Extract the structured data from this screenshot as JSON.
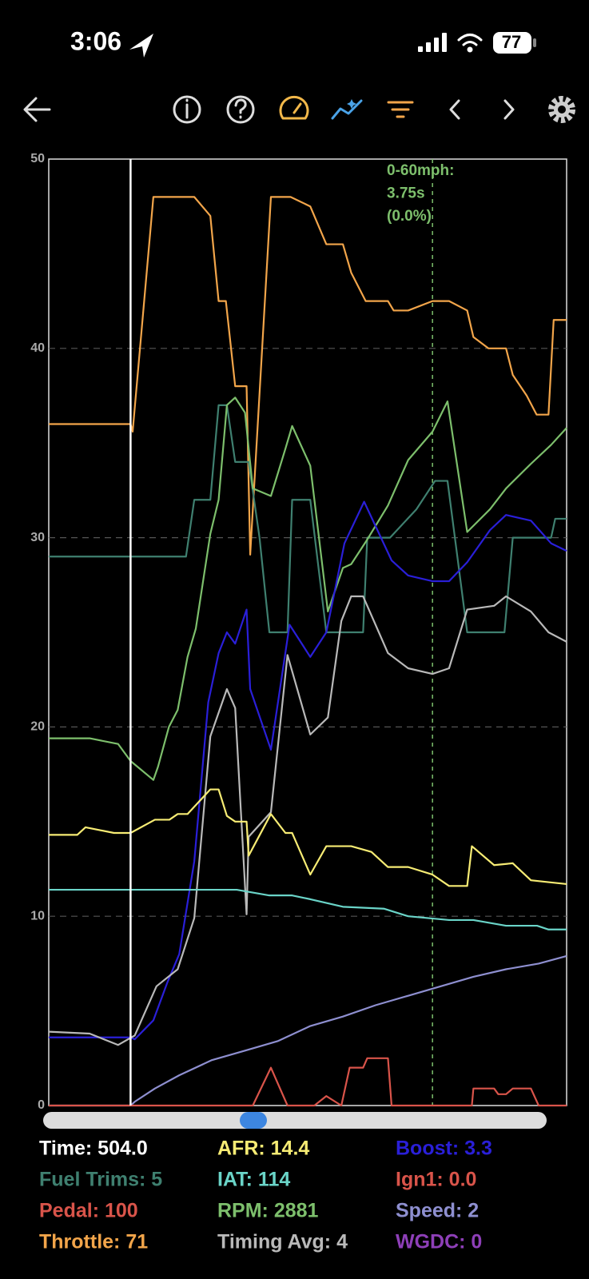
{
  "status_bar": {
    "time": "3:06",
    "battery": "77"
  },
  "chart_data": {
    "type": "line",
    "xlim": [
      0,
      100
    ],
    "ylim": [
      0,
      50
    ],
    "yticks": [
      0,
      10,
      20,
      30,
      40,
      50
    ],
    "grid": true,
    "cursor_x": 15.8,
    "marker_x": 74.1,
    "marker_color": "#7dbf6c",
    "annotation": [
      "0-60mph:",
      "3.75s",
      "(0.0%)"
    ],
    "series": [
      {
        "color": "#f2a54a",
        "x": [
          0,
          15.8,
          16.2,
          20.2,
          28.1,
          31.2,
          32.8,
          34.2,
          36,
          38.2,
          38.9,
          42.9,
          46.7,
          50.5,
          53.6,
          56.8,
          58.4,
          61.2,
          65.5,
          66.6,
          69.4,
          74.1,
          77.3,
          80.8,
          82,
          84.9,
          88.3,
          89.6,
          92.3,
          94.2,
          96.5,
          97.5,
          100
        ],
        "values": [
          36,
          36,
          35.6,
          48,
          48,
          47,
          42.5,
          42.5,
          38,
          38,
          29.1,
          48,
          48,
          47.5,
          45.5,
          45.5,
          44,
          42.5,
          42.5,
          42,
          42,
          42.5,
          42.5,
          42,
          40.6,
          40,
          40,
          38.6,
          37.5,
          36.5,
          36.5,
          41.5,
          41.5
        ]
      },
      {
        "color": "#3f8070",
        "x": [
          0,
          26.5,
          28.1,
          31.2,
          32.8,
          34.4,
          36,
          38.6,
          40.7,
          42.6,
          46.1,
          47,
          50.5,
          53.6,
          60.7,
          61.5,
          65.9,
          71,
          74.6,
          77,
          80.8,
          88,
          89.6,
          97,
          97.8,
          100
        ],
        "values": [
          29,
          29,
          32,
          32,
          37,
          37,
          34,
          34,
          30,
          25,
          25,
          32,
          32,
          25,
          25,
          30,
          30,
          31.5,
          33,
          33,
          25,
          25,
          30,
          30,
          31,
          31
        ]
      },
      {
        "color": "#7dbf6c",
        "x": [
          0,
          7.9,
          13.4,
          15.8,
          20.2,
          21.1,
          23.2,
          24.9,
          26.8,
          28.4,
          31.2,
          32.8,
          34.4,
          36,
          37.9,
          39.4,
          42.9,
          45.7,
          47,
          50.5,
          53.9,
          56.8,
          58.4,
          61.5,
          65.5,
          69.4,
          74.1,
          77,
          80.8,
          85.2,
          88.3,
          93.1,
          97,
          100
        ],
        "values": [
          19.4,
          19.4,
          19.1,
          18.2,
          17.2,
          17.9,
          20,
          20.9,
          23.7,
          25.2,
          30.2,
          32,
          37,
          37.4,
          36.6,
          32.6,
          32.2,
          34.7,
          35.9,
          33.8,
          26.1,
          28.4,
          28.6,
          29.9,
          31.7,
          34.1,
          35.6,
          37.2,
          30.3,
          31.5,
          32.6,
          33.9,
          34.9,
          35.8
        ]
      },
      {
        "color": "#2a1fd8",
        "x": [
          0,
          15.8,
          16.6,
          20.2,
          22.9,
          25.2,
          28.1,
          30.8,
          32.8,
          34.4,
          36,
          38.2,
          38.9,
          42.9,
          46.5,
          50.5,
          53.6,
          57.1,
          60.9,
          66.2,
          69.4,
          74.1,
          77.3,
          80.8,
          85.2,
          88.3,
          93.1,
          97,
          100
        ],
        "values": [
          3.6,
          3.6,
          3.5,
          4.5,
          6.5,
          8,
          12.9,
          21.3,
          23.9,
          25,
          24.4,
          26.2,
          22,
          18.8,
          25.4,
          23.7,
          25,
          29.7,
          31.9,
          28.8,
          28,
          27.7,
          27.7,
          28.7,
          30.4,
          31.2,
          30.9,
          29.7,
          29.3
        ]
      },
      {
        "color": "#b9b9b9",
        "x": [
          0,
          7.9,
          13.4,
          16.6,
          20.8,
          24.9,
          28.1,
          31.2,
          34.4,
          36,
          38.2,
          38.6,
          42.9,
          46.1,
          50.5,
          53.9,
          56.5,
          58.4,
          60.7,
          65.5,
          69.4,
          74.1,
          77.3,
          80.8,
          86,
          88.3,
          93.1,
          96.5,
          100
        ],
        "values": [
          3.9,
          3.8,
          3.2,
          3.7,
          6.3,
          7.2,
          9.9,
          19.5,
          22,
          21,
          10.1,
          14.2,
          15.5,
          23.8,
          19.6,
          20.5,
          25.6,
          26.9,
          26.9,
          23.9,
          23.1,
          22.8,
          23.1,
          26.2,
          26.4,
          26.9,
          26.1,
          25,
          24.5
        ]
      },
      {
        "color": "#f7ec74",
        "x": [
          0,
          5.5,
          7.1,
          12.6,
          15.8,
          20.5,
          23.3,
          24.9,
          26.8,
          31.2,
          32.8,
          34.4,
          36,
          38.2,
          38.6,
          42.9,
          45.7,
          47,
          50.5,
          53.6,
          58.4,
          62.3,
          65.5,
          69.4,
          74.1,
          77.3,
          80.8,
          81.7,
          86,
          89.6,
          93.1,
          96.5,
          100
        ],
        "values": [
          14.3,
          14.3,
          14.7,
          14.4,
          14.4,
          15.1,
          15.1,
          15.4,
          15.4,
          16.7,
          16.7,
          15.3,
          15,
          15,
          13.2,
          15.4,
          14.4,
          14.4,
          12.2,
          13.7,
          13.7,
          13.4,
          12.6,
          12.6,
          12.2,
          11.6,
          11.6,
          13.7,
          12.7,
          12.8,
          11.9,
          11.8,
          11.7
        ]
      },
      {
        "color": "#6ad4c8",
        "x": [
          0,
          36.3,
          42.6,
          47,
          50.5,
          56.8,
          64.7,
          69.4,
          77.3,
          82,
          88.3,
          94.3,
          96.5,
          100
        ],
        "values": [
          11.4,
          11.4,
          11.1,
          11.1,
          10.9,
          10.5,
          10.4,
          10,
          9.8,
          9.8,
          9.5,
          9.5,
          9.3,
          9.3
        ]
      },
      {
        "color": "#8e8fd0",
        "x": [
          0,
          15.8,
          16.6,
          20.5,
          25.2,
          31.5,
          37.9,
          44.2,
          50.5,
          56.8,
          63.1,
          69.4,
          75.7,
          82,
          88.3,
          94.6,
          100
        ],
        "values": [
          0,
          0,
          0.2,
          0.9,
          1.6,
          2.4,
          2.9,
          3.4,
          4.2,
          4.7,
          5.3,
          5.8,
          6.3,
          6.8,
          7.2,
          7.5,
          7.9
        ]
      },
      {
        "color": "#d9544a",
        "x": [
          0,
          39.4,
          42.9,
          46.1,
          51.3,
          53.6,
          56.5,
          58.1,
          60.7,
          61.5,
          65.5,
          66.2,
          81.7,
          82,
          86,
          86.8,
          88.3,
          89.6,
          93.1,
          94.6,
          100
        ],
        "values": [
          0,
          0,
          2,
          0,
          0,
          0.5,
          0,
          2,
          2,
          2.5,
          2.5,
          0,
          0,
          0.9,
          0.9,
          0.6,
          0.6,
          0.9,
          0.9,
          0,
          0
        ]
      }
    ]
  },
  "readouts": [
    {
      "label": "Time: 504.0",
      "color": "#ffffff"
    },
    {
      "label": "AFR: 14.4",
      "color": "#f7ec74"
    },
    {
      "label": "Boost: 3.3",
      "color": "#2a1fd8"
    },
    {
      "label": "Fuel Trims: 5",
      "color": "#3f8070"
    },
    {
      "label": "IAT: 114",
      "color": "#6ad4c8"
    },
    {
      "label": "Ign1: 0.0",
      "color": "#d9544a"
    },
    {
      "label": "Pedal: 100",
      "color": "#d9544a"
    },
    {
      "label": "RPM: 2881",
      "color": "#7dbf6c"
    },
    {
      "label": "Speed: 2",
      "color": "#8e8fd0"
    },
    {
      "label": "Throttle: 71",
      "color": "#f2a54a"
    },
    {
      "label": "Timing Avg: 4",
      "color": "#b9b9b9"
    },
    {
      "label": "WGDC: 0",
      "color": "#8e3fb8"
    }
  ]
}
